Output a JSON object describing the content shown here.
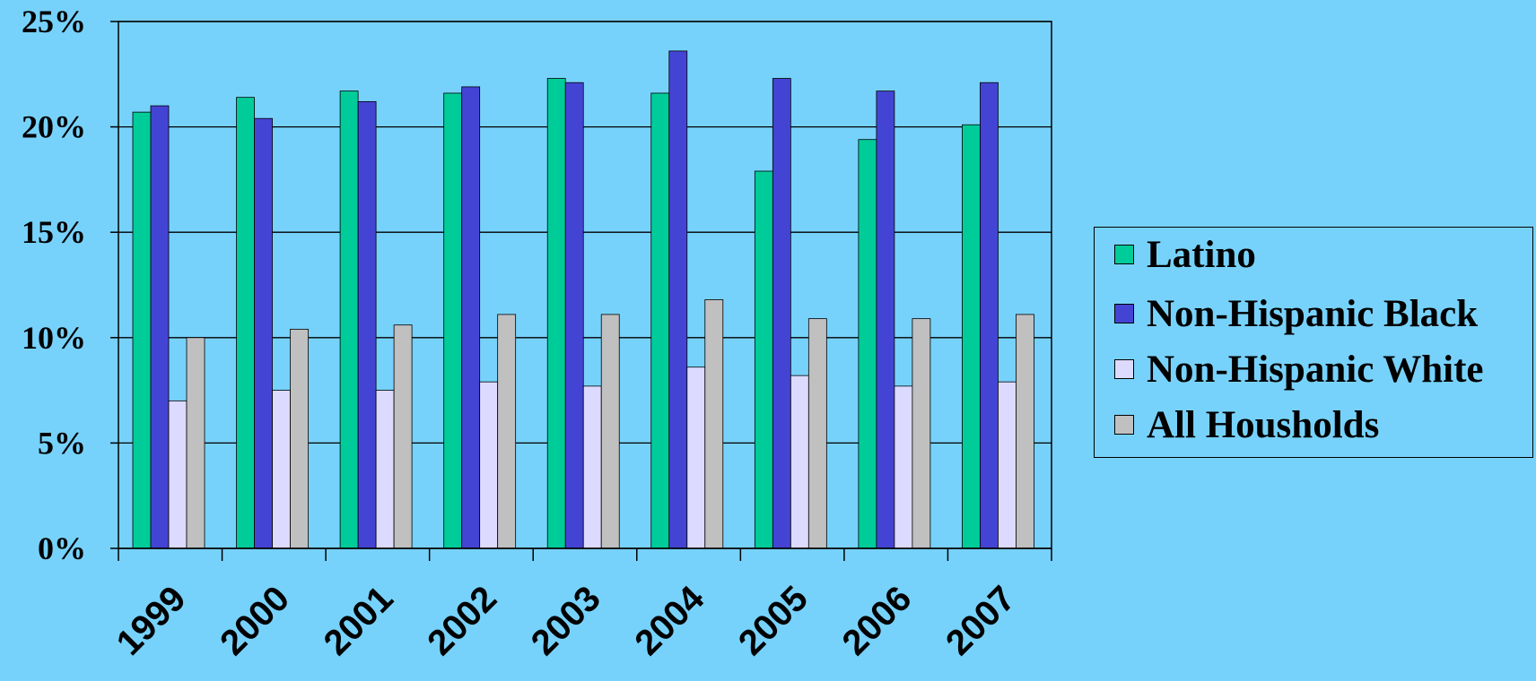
{
  "chart_data": {
    "type": "bar",
    "title": "",
    "xlabel": "",
    "ylabel": "",
    "categories": [
      "1999",
      "2000",
      "2001",
      "2002",
      "2003",
      "2004",
      "2005",
      "2006",
      "2007"
    ],
    "series": [
      {
        "name": "Latino",
        "color": "#00cc99",
        "values": [
          20.7,
          21.4,
          21.7,
          21.6,
          22.3,
          21.6,
          17.9,
          19.4,
          20.1
        ]
      },
      {
        "name": "Non-Hispanic Black",
        "color": "#4444d4",
        "values": [
          21.0,
          20.4,
          21.2,
          21.9,
          22.1,
          23.6,
          22.3,
          21.7,
          22.1
        ]
      },
      {
        "name": "Non-Hispanic White",
        "color": "#dcdaff",
        "values": [
          7.0,
          7.5,
          7.5,
          7.9,
          7.7,
          8.6,
          8.2,
          7.7,
          7.9
        ]
      },
      {
        "name": "All Housholds",
        "color": "#c0c0c0",
        "values": [
          10.0,
          10.4,
          10.6,
          11.1,
          11.1,
          11.8,
          10.9,
          10.9,
          11.1
        ]
      }
    ],
    "ylim": [
      0,
      25
    ],
    "yticks": [
      "0%",
      "5%",
      "10%",
      "15%",
      "20%",
      "25%"
    ],
    "grid": true,
    "legend_position": "right"
  }
}
